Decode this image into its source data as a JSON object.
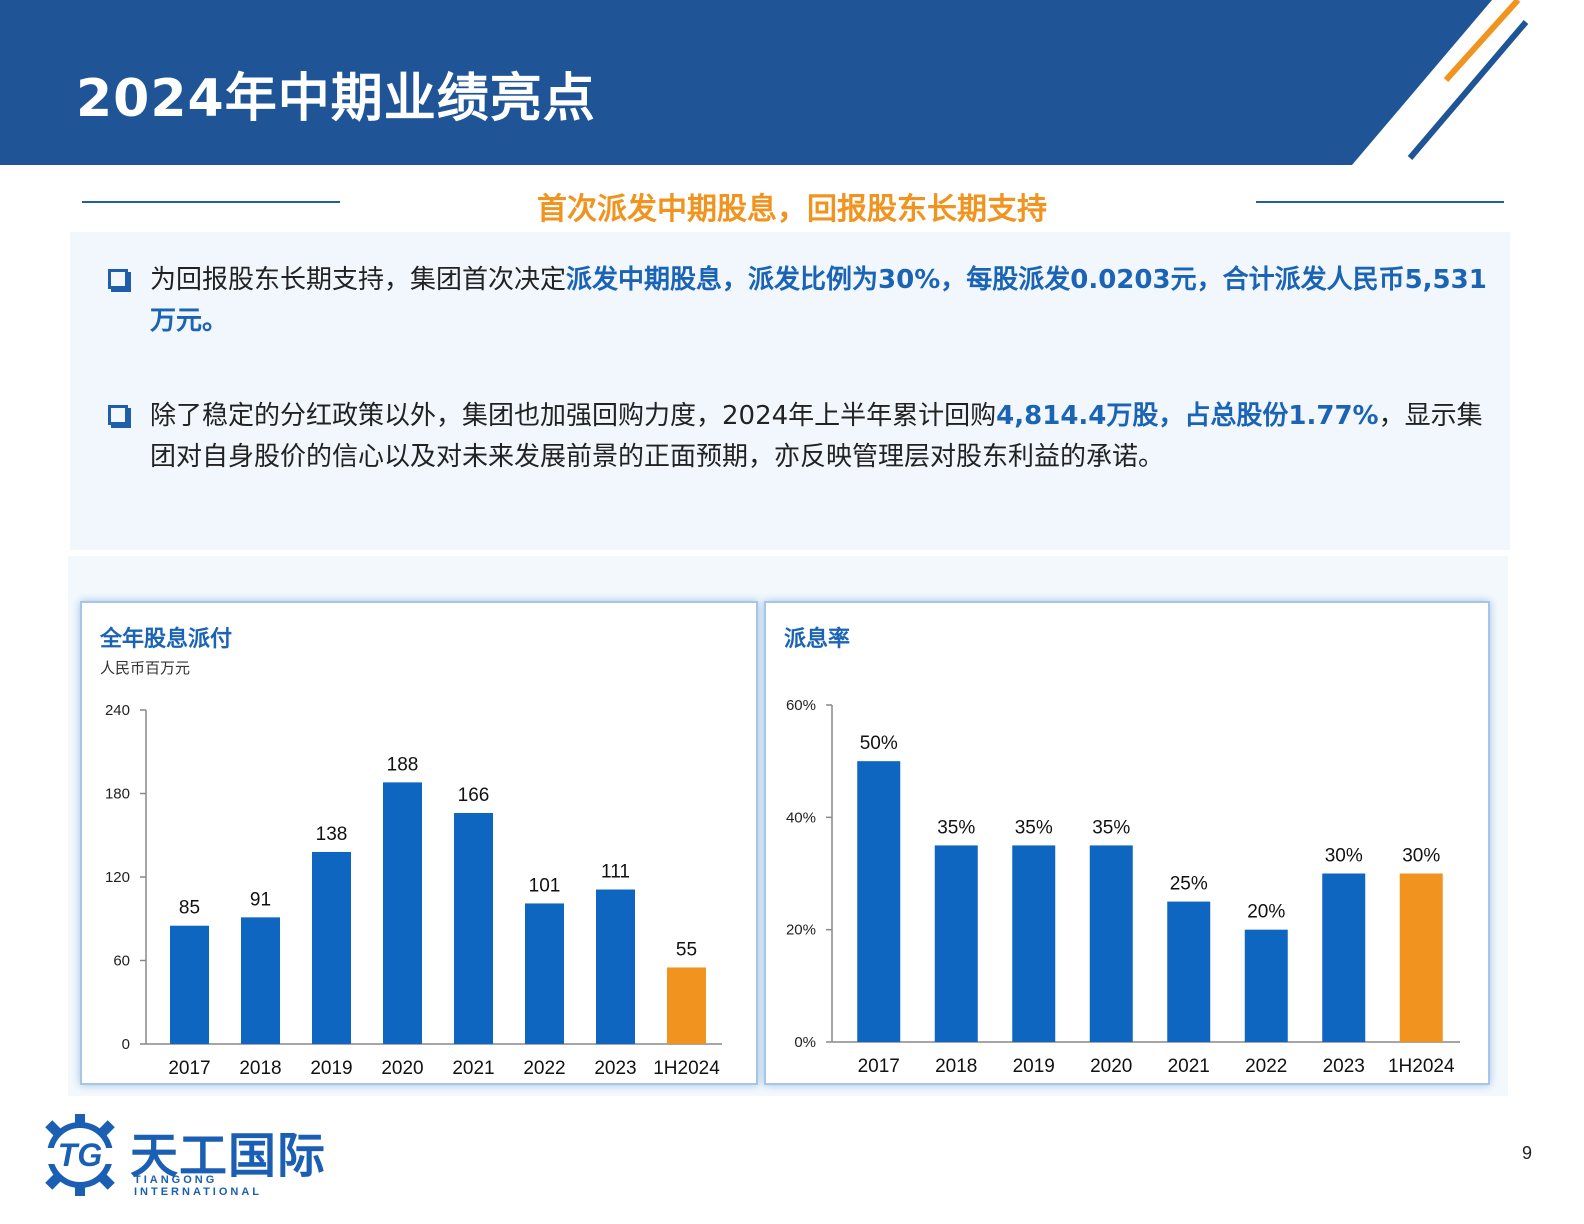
{
  "header": {
    "title": "2024年中期业绩亮点",
    "bg_color": "#1f5597",
    "accent_orange": "#f0941f"
  },
  "subtitle": "首次派发中期股息，回报股东长期支持",
  "bullets": [
    {
      "parts": [
        {
          "text": "为回报股东长期支持，集团首次决定",
          "highlight": false
        },
        {
          "text": "派发中期股息，派发比例为30%，每股派发0.0203元，合计派发人民币5,531万元。",
          "highlight": true
        }
      ]
    },
    {
      "parts": [
        {
          "text": "除了稳定的分红政策以外，集团也加强回购力度，2024年上半年累计回购",
          "highlight": false
        },
        {
          "text": "4,814.4万股，占总股份1.77%",
          "highlight": true
        },
        {
          "text": "，显示集团对自身股价的信心以及对未来发展前景的正面预期，亦反映管理层对股东利益的承诺。",
          "highlight": false
        }
      ]
    }
  ],
  "chart_data": [
    {
      "type": "bar",
      "title": "全年股息派付",
      "subtitle": "人民币百万元",
      "categories": [
        "2017",
        "2018",
        "2019",
        "2020",
        "2021",
        "2022",
        "2023",
        "1H2024"
      ],
      "values": [
        85,
        91,
        138,
        188,
        166,
        101,
        111,
        55
      ],
      "value_labels": [
        "85",
        "91",
        "138",
        "188",
        "166",
        "101",
        "111",
        "55"
      ],
      "ylim": [
        0,
        240
      ],
      "yticks": [
        "0",
        "60",
        "120",
        "180",
        "240"
      ],
      "bar_color": "#0f66c0",
      "highlight_color": "#f0941f",
      "highlight_index": 7,
      "grid": false
    },
    {
      "type": "bar",
      "title": "派息率",
      "categories": [
        "2017",
        "2018",
        "2019",
        "2020",
        "2021",
        "2022",
        "2023",
        "1H2024"
      ],
      "values": [
        50,
        35,
        35,
        35,
        25,
        20,
        30,
        30
      ],
      "value_labels": [
        "50%",
        "35%",
        "35%",
        "35%",
        "25%",
        "20%",
        "30%",
        "30%"
      ],
      "ylim": [
        0,
        60
      ],
      "yticks": [
        "0%",
        "20%",
        "40%",
        "60%"
      ],
      "bar_color": "#0f66c0",
      "highlight_color": "#f0941f",
      "highlight_index": 7,
      "grid": false
    }
  ],
  "logo": {
    "name_cn": "天工国际",
    "name_en": "TIANGONG INTERNATIONAL",
    "mark": "TG"
  },
  "page_number": "9"
}
